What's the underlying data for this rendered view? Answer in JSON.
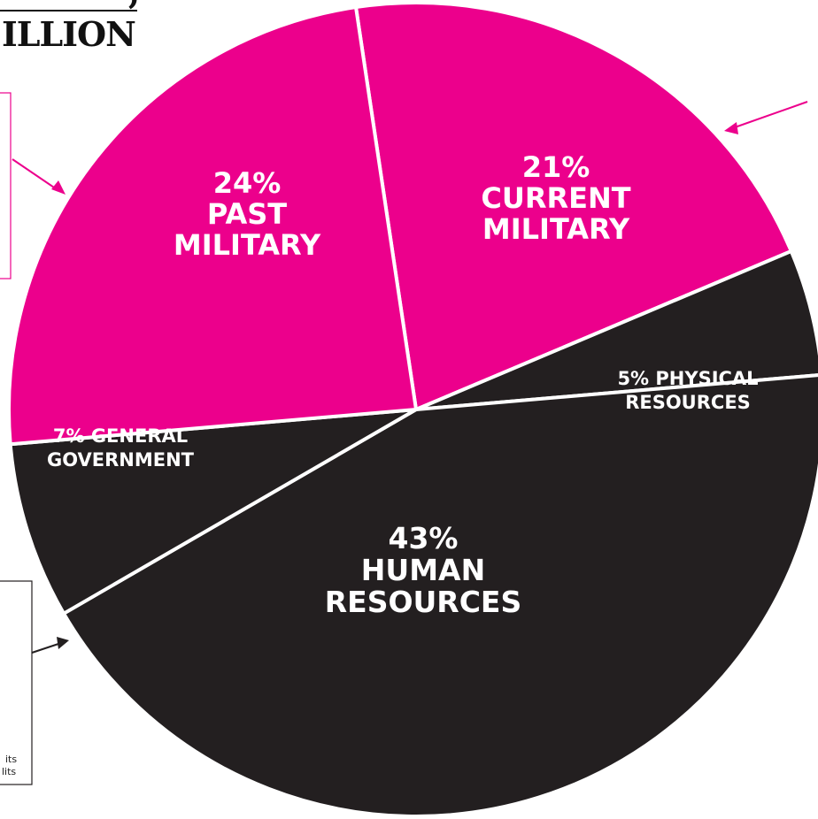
{
  "header": {
    "headline_fragment": "ILLION",
    "top_fragment": ","
  },
  "notes": {
    "line1": "its",
    "line2": "lits"
  },
  "colors": {
    "military": "#EC008C",
    "other": "#231F20",
    "divider": "#FFFFFF"
  },
  "chart_data": {
    "type": "pie",
    "slices": [
      {
        "key": "current_military",
        "value": 21,
        "color": "#EC008C",
        "label_lines": [
          "21%",
          "CURRENT",
          "MILITARY"
        ]
      },
      {
        "key": "physical_resources",
        "value": 5,
        "color": "#231F20",
        "label_lines": [
          "5% PHYSICAL",
          "RESOURCES"
        ]
      },
      {
        "key": "human_resources",
        "value": 43,
        "color": "#231F20",
        "label_lines": [
          "43%",
          "HUMAN",
          "RESOURCES"
        ]
      },
      {
        "key": "general_government",
        "value": 7,
        "color": "#231F20",
        "label_lines": [
          "7% GENERAL",
          "GOVERNMENT"
        ]
      },
      {
        "key": "past_military",
        "value": 24,
        "color": "#EC008C",
        "label_lines": [
          "24%",
          "PAST",
          "MILITARY"
        ]
      }
    ]
  }
}
